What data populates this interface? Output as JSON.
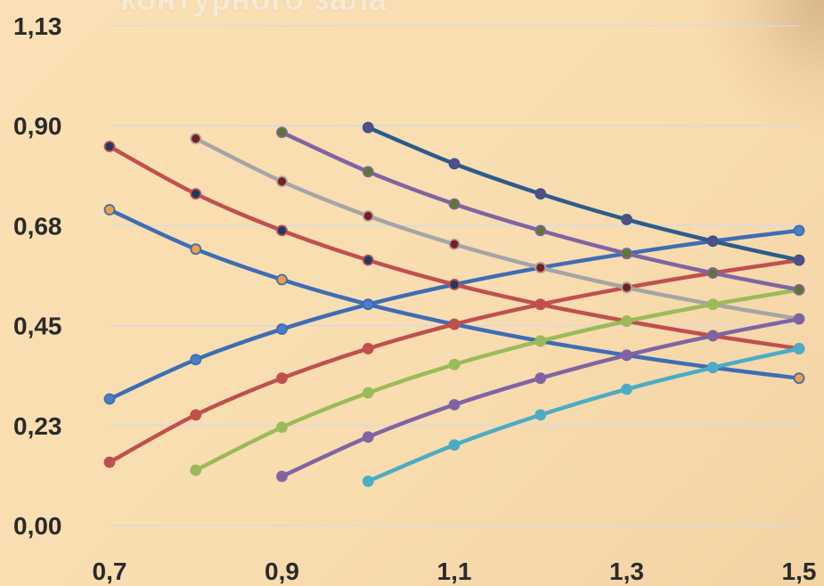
{
  "title_fragment": "контурного зала",
  "chart_data": {
    "type": "line",
    "x_ticks": [
      "0,7",
      "0,9",
      "1,1",
      "1,3",
      "1,5"
    ],
    "y_ticks": [
      "0,00",
      "0,23",
      "0,45",
      "0,68",
      "0,90",
      "1,13"
    ],
    "xlim": [
      0.7,
      1.5
    ],
    "ylim": [
      0.0,
      1.13
    ],
    "grid": true,
    "legend": "none",
    "series": [
      {
        "color": "#3e6db5",
        "marker": "#f0a040",
        "x": [
          0.7,
          0.8,
          0.9,
          1.0,
          1.1,
          1.2,
          1.3,
          1.4,
          1.5
        ],
        "y": [
          0.714,
          0.625,
          0.556,
          0.5,
          0.455,
          0.417,
          0.385,
          0.357,
          0.333
        ]
      },
      {
        "color": "#3e6db5",
        "marker": "#4a7fc8",
        "x": [
          0.7,
          0.8,
          0.9,
          1.0,
          1.1,
          1.2,
          1.3,
          1.4,
          1.5
        ],
        "y": [
          0.286,
          0.375,
          0.444,
          0.5,
          0.545,
          0.583,
          0.615,
          0.643,
          0.667
        ]
      },
      {
        "color": "#c0504d",
        "marker": "#1f3864",
        "x": [
          0.7,
          0.8,
          0.9,
          1.0,
          1.1,
          1.2,
          1.3,
          1.4,
          1.5
        ],
        "y": [
          0.857,
          0.75,
          0.667,
          0.6,
          0.545,
          0.5,
          0.462,
          0.429,
          0.4
        ]
      },
      {
        "color": "#c0504d",
        "marker": "#c0504d",
        "x": [
          0.7,
          0.8,
          0.9,
          1.0,
          1.1,
          1.2,
          1.3,
          1.4,
          1.5
        ],
        "y": [
          0.143,
          0.25,
          0.333,
          0.4,
          0.455,
          0.5,
          0.538,
          0.571,
          0.6
        ]
      },
      {
        "color": "#a5a5a5",
        "marker": "#7a1f1f",
        "x": [
          0.8,
          0.9,
          1.0,
          1.1,
          1.2,
          1.3,
          1.4,
          1.5
        ],
        "y": [
          0.875,
          0.778,
          0.7,
          0.636,
          0.583,
          0.538,
          0.5,
          0.467
        ]
      },
      {
        "color": "#9bbb59",
        "marker": "#9bbb59",
        "x": [
          0.8,
          0.9,
          1.0,
          1.1,
          1.2,
          1.3,
          1.4,
          1.5
        ],
        "y": [
          0.125,
          0.222,
          0.3,
          0.364,
          0.417,
          0.462,
          0.5,
          0.533
        ]
      },
      {
        "color": "#8064a2",
        "marker": "#5a7a2a",
        "x": [
          0.9,
          1.0,
          1.1,
          1.2,
          1.3,
          1.4,
          1.5
        ],
        "y": [
          0.889,
          0.8,
          0.727,
          0.667,
          0.615,
          0.571,
          0.533
        ]
      },
      {
        "color": "#8064a2",
        "marker": "#8064a2",
        "x": [
          0.9,
          1.0,
          1.1,
          1.2,
          1.3,
          1.4,
          1.5
        ],
        "y": [
          0.111,
          0.2,
          0.273,
          0.333,
          0.385,
          0.429,
          0.467
        ]
      },
      {
        "color": "#2e5c8a",
        "marker": "#5a4a8a",
        "x": [
          1.0,
          1.1,
          1.2,
          1.3,
          1.4,
          1.5
        ],
        "y": [
          0.9,
          0.818,
          0.75,
          0.692,
          0.643,
          0.6
        ]
      },
      {
        "color": "#4bacc6",
        "marker": "#4bacc6",
        "x": [
          1.0,
          1.1,
          1.2,
          1.3,
          1.4,
          1.5
        ],
        "y": [
          0.1,
          0.182,
          0.25,
          0.308,
          0.357,
          0.4
        ]
      }
    ]
  }
}
